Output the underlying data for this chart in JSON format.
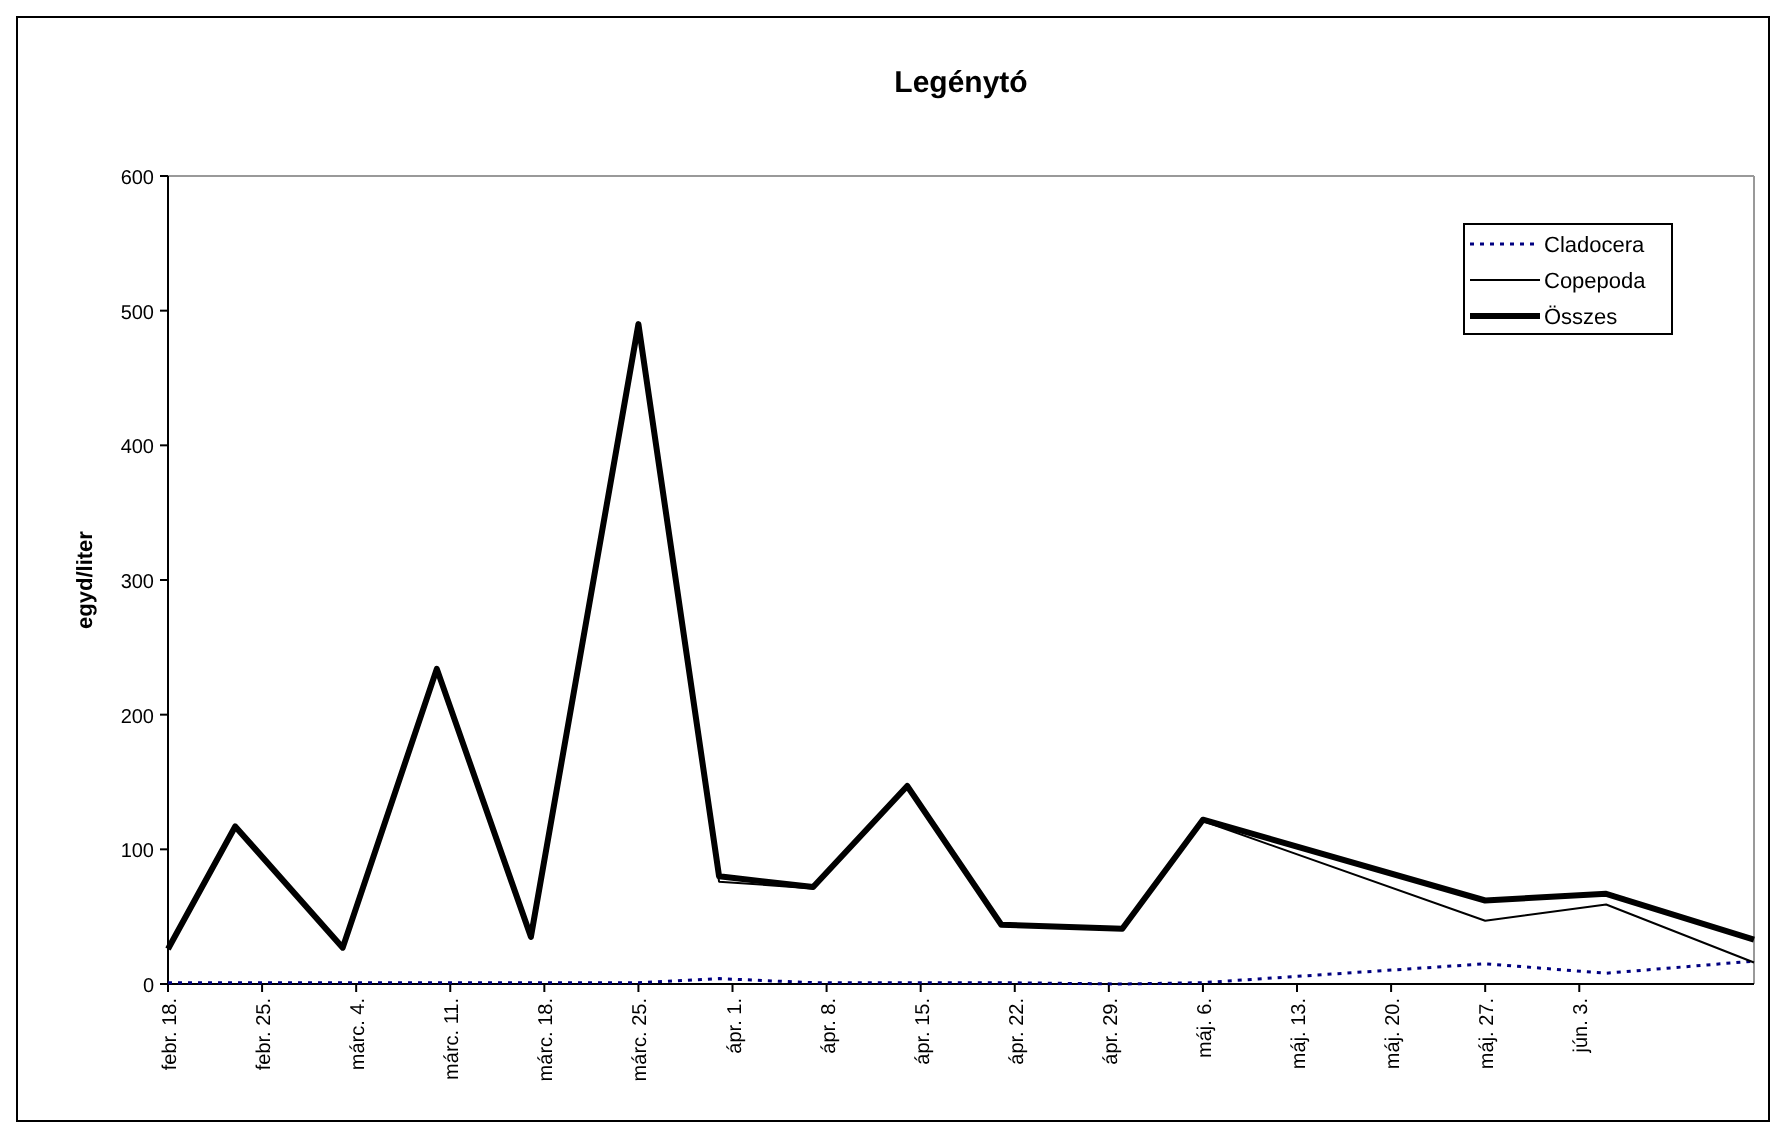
{
  "chart_data": {
    "type": "line",
    "title": "Legénytó",
    "ylabel": "egyd/liter",
    "x": [
      "--02-18",
      "--02-23",
      "--03-03",
      "--03-10",
      "--03-17",
      "--03-25",
      "--03-31",
      "--04-07",
      "--04-14",
      "--04-21",
      "--04-30",
      "--05-06",
      "--05-27",
      "--06-05",
      "--06-16"
    ],
    "xlim": [
      "--02-18",
      "--06-16"
    ],
    "xticks": [
      {
        "value": "--02-18",
        "label": "febr. 18."
      },
      {
        "value": "--02-25",
        "label": "febr. 25."
      },
      {
        "value": "--03-04",
        "label": "márc. 4."
      },
      {
        "value": "--03-11",
        "label": "márc. 11."
      },
      {
        "value": "--03-18",
        "label": "márc. 18."
      },
      {
        "value": "--03-25",
        "label": "márc. 25."
      },
      {
        "value": "--04-01",
        "label": "ápr. 1."
      },
      {
        "value": "--04-08",
        "label": "ápr. 8."
      },
      {
        "value": "--04-15",
        "label": "ápr. 15."
      },
      {
        "value": "--04-22",
        "label": "ápr. 22."
      },
      {
        "value": "--04-29",
        "label": "ápr. 29."
      },
      {
        "value": "--05-06",
        "label": "máj. 6."
      },
      {
        "value": "--05-13",
        "label": "máj. 13."
      },
      {
        "value": "--05-20",
        "label": "máj. 20."
      },
      {
        "value": "--05-27",
        "label": "máj. 27."
      },
      {
        "value": "--06-03",
        "label": "jún. 3."
      }
    ],
    "ylim": [
      0,
      600
    ],
    "yticks": [
      0,
      100,
      200,
      300,
      400,
      500,
      600
    ],
    "legend": "top right",
    "marker": "none",
    "series": [
      {
        "name": "Cladocera",
        "color": "#000080",
        "line_style": "dotted",
        "values": [
          1,
          1,
          1,
          1,
          1,
          1,
          4,
          1,
          1,
          1,
          0,
          1,
          15,
          8,
          17
        ]
      },
      {
        "name": "Copepoda",
        "color": "#000000",
        "line_style": "solid",
        "values": [
          25,
          116,
          26,
          233,
          34,
          489,
          76,
          71,
          146,
          43,
          41,
          121,
          47,
          59,
          16
        ]
      },
      {
        "name": "Összes",
        "color": "#000000",
        "line_style": "solid",
        "values": [
          26,
          117,
          27,
          234,
          35,
          490,
          80,
          72,
          147,
          44,
          41,
          122,
          62,
          67,
          33
        ]
      }
    ]
  }
}
